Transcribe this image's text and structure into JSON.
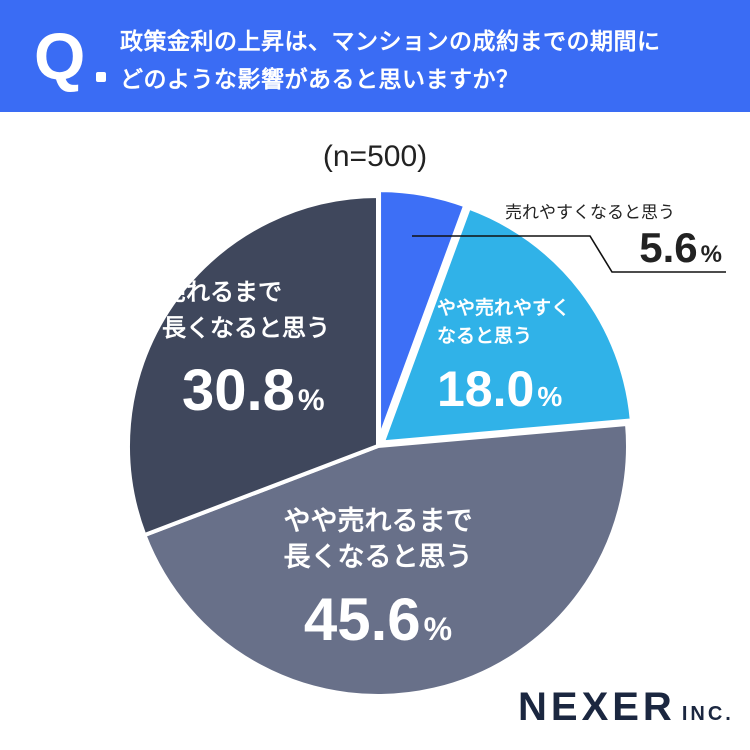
{
  "header": {
    "q_mark": "Q",
    "question_line1": "政策金利の上昇は、マンションの成約までの期間に",
    "question_line2": "どのような影響があると思いますか？"
  },
  "sample_label": "(n=500)",
  "colors": {
    "header_bg": "#3a6cf4",
    "slice_1": "#3d6ff6",
    "slice_2": "#30b2e8",
    "slice_3": "#687089",
    "slice_4": "#3f475c"
  },
  "chart_data": {
    "type": "pie",
    "title": "",
    "start": "12 o'clock",
    "direction": "clockwise",
    "slices": [
      {
        "label": "売れやすくなると思う",
        "label_lines": [
          "売れやすくなると思う"
        ],
        "value": 5.6,
        "display": "5.6",
        "unit": "%"
      },
      {
        "label": "やや売れやすくなると思う",
        "label_lines": [
          "やや売れやすく",
          "なると思う"
        ],
        "value": 18.0,
        "display": "18.0",
        "unit": "%"
      },
      {
        "label": "やや売れるまで長くなると思う",
        "label_lines": [
          "やや売れるまで",
          "長くなると思う"
        ],
        "value": 45.6,
        "display": "45.6",
        "unit": "%"
      },
      {
        "label": "売れるまで長くなると思う",
        "label_lines": [
          "売れるまで",
          "長くなると思う"
        ],
        "value": 30.8,
        "display": "30.8",
        "unit": "%"
      }
    ]
  },
  "logo": {
    "name": "NEXER",
    "suffix": "INC."
  }
}
